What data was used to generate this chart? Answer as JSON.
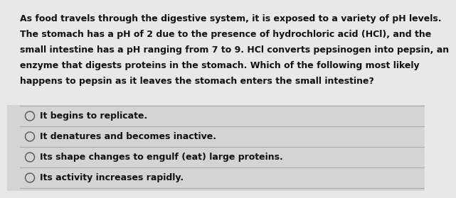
{
  "background_color": "#e8e8e8",
  "question_bg_color": "#e8e8e8",
  "options_bg_color": "#d8d8d8",
  "question_text": [
    "As food travels through the digestive system, it is exposed to a variety of pH levels.",
    "The stomach has a pH of 2 due to the presence of hydrochloric acid (HCl), and the",
    "small intestine has a pH ranging from 7 to 9. HCl converts pepsinogen into pepsin, an",
    "enzyme that digests proteins in the stomach. Which of the following most likely",
    "happens to pepsin as it leaves the stomach enters the small intestine?"
  ],
  "options": [
    "It begins to replicate.",
    "It denatures and becomes inactive.",
    "Its shape changes to engulf (eat) large proteins.",
    "Its activity increases rapidly."
  ],
  "text_color": "#111111",
  "divider_color": "#aaaaaa",
  "font_size_question": 9.0,
  "font_size_option": 9.0,
  "circle_color": "#555555"
}
